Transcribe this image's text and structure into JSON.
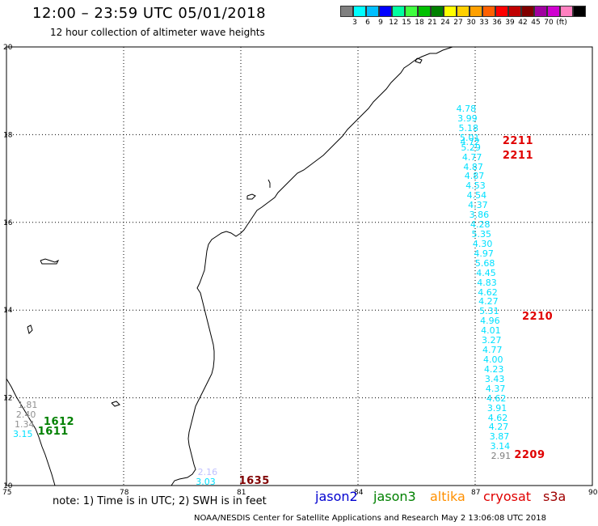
{
  "header": {
    "title": "12:00 – 23:59 UTC 05/01/2018",
    "subtitle": "12 hour collection of altimeter wave heights"
  },
  "legend": {
    "colors": [
      "#808080",
      "#00ffff",
      "#00bfff",
      "#0000ff",
      "#00ffa0",
      "#40ff40",
      "#00c000",
      "#008000",
      "#ffff00",
      "#ffd000",
      "#ffa000",
      "#ff6000",
      "#ff0000",
      "#c00000",
      "#800000",
      "#a000a0",
      "#d000d0",
      "#ff80c0",
      "#000000"
    ],
    "labels": [
      "3",
      "6",
      "9",
      "12",
      "15",
      "18",
      "21",
      "24",
      "27",
      "30",
      "33",
      "36",
      "39",
      "42",
      "45",
      "70",
      "(ft)"
    ]
  },
  "map": {
    "y_ticks": [
      "20",
      "18",
      "16",
      "14",
      "12",
      "10"
    ],
    "x_ticks": [
      "75",
      "78",
      "81",
      "84",
      "87",
      "90"
    ]
  },
  "chart_data": {
    "type": "scatter",
    "title": "12:00 – 23:59 UTC 05/01/2018",
    "subtitle": "12 hour collection of altimeter wave heights",
    "xlabel": "",
    "ylabel": "",
    "xlim": [
      75,
      90
    ],
    "ylim": [
      10,
      20
    ],
    "units": "ft",
    "track_east": {
      "color": "#00e0ff",
      "values": [
        "4.78",
        "3.99",
        "5.18",
        "5.01",
        "4.72",
        "5.29",
        "4.77",
        "4.87",
        "4.87",
        "4.53",
        "4.54",
        "4.37",
        "3.86",
        "4.28",
        "5.35",
        "4.30",
        "4.97",
        "5.68",
        "4.45",
        "4.83",
        "4.62",
        "4.27",
        "5.31",
        "4.96",
        "4.01",
        "3.27",
        "4.77",
        "4.00",
        "4.23",
        "3.43",
        "4.37",
        "4.62",
        "3.91",
        "4.62",
        "4.27",
        "3.87",
        "3.14",
        "2.91"
      ],
      "points": [
        {
          "x": 86.77,
          "y": 18.58
        },
        {
          "x": 86.8,
          "y": 18.36
        },
        {
          "x": 86.83,
          "y": 18.14
        },
        {
          "x": 86.86,
          "y": 17.92
        },
        {
          "x": 86.87,
          "y": 17.83
        },
        {
          "x": 86.89,
          "y": 17.7
        },
        {
          "x": 86.92,
          "y": 17.48
        },
        {
          "x": 86.95,
          "y": 17.26
        },
        {
          "x": 86.98,
          "y": 17.04
        },
        {
          "x": 87.01,
          "y": 16.82
        },
        {
          "x": 87.04,
          "y": 16.6
        },
        {
          "x": 87.07,
          "y": 16.38
        },
        {
          "x": 87.1,
          "y": 16.16
        },
        {
          "x": 87.13,
          "y": 15.94
        },
        {
          "x": 87.16,
          "y": 15.72
        },
        {
          "x": 87.19,
          "y": 15.5
        },
        {
          "x": 87.22,
          "y": 15.28
        },
        {
          "x": 87.25,
          "y": 15.06
        },
        {
          "x": 87.28,
          "y": 14.84
        },
        {
          "x": 87.3,
          "y": 14.62
        },
        {
          "x": 87.32,
          "y": 14.4
        },
        {
          "x": 87.34,
          "y": 14.18
        },
        {
          "x": 87.36,
          "y": 13.96
        },
        {
          "x": 87.38,
          "y": 13.74
        },
        {
          "x": 87.4,
          "y": 13.52
        },
        {
          "x": 87.42,
          "y": 13.3
        },
        {
          "x": 87.44,
          "y": 13.08
        },
        {
          "x": 87.46,
          "y": 12.86
        },
        {
          "x": 87.48,
          "y": 12.64
        },
        {
          "x": 87.5,
          "y": 12.42
        },
        {
          "x": 87.52,
          "y": 12.2
        },
        {
          "x": 87.54,
          "y": 11.98
        },
        {
          "x": 87.56,
          "y": 11.76
        },
        {
          "x": 87.58,
          "y": 11.54
        },
        {
          "x": 87.6,
          "y": 11.32
        },
        {
          "x": 87.62,
          "y": 11.1
        },
        {
          "x": 87.64,
          "y": 10.88
        },
        {
          "x": 87.66,
          "y": 10.66
        }
      ]
    },
    "track_east_colors": [
      "#00e0ff",
      "#00e0ff",
      "#00e0ff",
      "#00e0ff",
      "#00e0ff",
      "#00e0ff",
      "#00e0ff",
      "#00e0ff",
      "#00e0ff",
      "#00e0ff",
      "#00e0ff",
      "#00e0ff",
      "#00e0ff",
      "#00e0ff",
      "#00e0ff",
      "#00e0ff",
      "#00e0ff",
      "#00e0ff",
      "#00e0ff",
      "#00e0ff",
      "#00e0ff",
      "#00e0ff",
      "#00e0ff",
      "#00e0ff",
      "#00e0ff",
      "#00e0ff",
      "#00e0ff",
      "#00e0ff",
      "#00e0ff",
      "#00e0ff",
      "#00e0ff",
      "#00e0ff",
      "#00e0ff",
      "#00e0ff",
      "#00e0ff",
      "#00e0ff",
      "#00e0ff",
      "#808080"
    ],
    "track_west": {
      "values": [
        "1.81",
        "2.40",
        "1.34",
        "3.15"
      ],
      "colors": [
        "#909090",
        "#909090",
        "#909090",
        "#00e0ff"
      ],
      "points": [
        {
          "x": 75.54,
          "y": 11.82
        },
        {
          "x": 75.5,
          "y": 11.6
        },
        {
          "x": 75.46,
          "y": 11.38
        },
        {
          "x": 75.42,
          "y": 11.16
        }
      ]
    },
    "track_south": {
      "values": [
        "2.16",
        "3.03"
      ],
      "colors": [
        "#c0c0ff",
        "#00e0ff"
      ],
      "points": [
        {
          "x": 80.15,
          "y": 10.3
        },
        {
          "x": 80.1,
          "y": 10.08
        }
      ]
    },
    "time_labels": [
      {
        "text": "2211",
        "x": 87.7,
        "y": 17.84,
        "color": "#e00000"
      },
      {
        "text": "2211",
        "x": 87.7,
        "y": 17.51,
        "color": "#e00000"
      },
      {
        "text": "2210",
        "x": 88.2,
        "y": 13.83,
        "color": "#e00000"
      },
      {
        "text": "2209",
        "x": 88.0,
        "y": 10.69,
        "color": "#e00000"
      },
      {
        "text": "1612",
        "x": 75.95,
        "y": 11.43,
        "color": "#008000"
      },
      {
        "text": "1611",
        "x": 75.8,
        "y": 11.21,
        "color": "#008000"
      },
      {
        "text": "1635",
        "x": 80.95,
        "y": 10.1,
        "color": "#800000"
      }
    ]
  },
  "footer": {
    "note": "note:  1) Time is in UTC;  2) SWH is in feet",
    "satellites": [
      {
        "name": "jason2",
        "color": "#0000d0"
      },
      {
        "name": "jason3",
        "color": "#008000"
      },
      {
        "name": "altika",
        "color": "#ff9000"
      },
      {
        "name": "cryosat",
        "color": "#e00000"
      },
      {
        "name": "s3a",
        "color": "#a00000"
      }
    ],
    "credit": "NOAA/NESDIS Center for Satellite Applications and Research     May  2 13:06:08 UTC 2018"
  }
}
